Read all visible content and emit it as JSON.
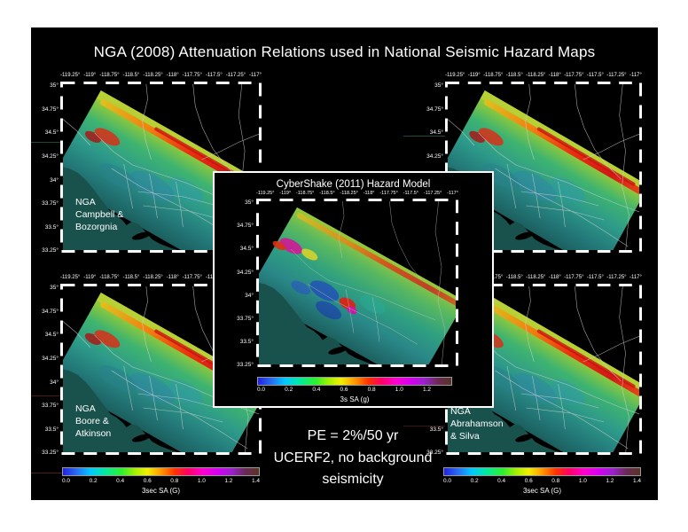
{
  "slide": {
    "title": "NGA (2008) Attenuation Relations used in National Seismic Hazard Maps"
  },
  "axes": {
    "x_labels": [
      "-119.25°",
      "-119°",
      "-118.75°",
      "-118.5°",
      "-118.25°",
      "-118°",
      "-117.75°",
      "-117.5°",
      "-117.25°",
      "-117°"
    ],
    "y_labels": [
      "35°",
      "34.75°",
      "34.5°",
      "34.25°",
      "34°",
      "33.75°",
      "33.5°",
      "33.25°"
    ]
  },
  "maps": {
    "top_left_label": "NGA\nCampbell &\nBozorgnia",
    "bottom_left_label": "NGA\nBoore &\nAtkinson",
    "bottom_right_label": "NGA\nAbrahamson\n&  Silva"
  },
  "inset": {
    "title": "CyberShake (2011) Hazard Model",
    "colorbar_ticks": [
      "0.0",
      "0.2",
      "0.4",
      "0.6",
      "0.8",
      "1.0",
      "1.2"
    ],
    "colorbar_label": "3s SA (g)"
  },
  "colorbars": {
    "ticks": [
      "0.0",
      "0.2",
      "0.4",
      "0.6",
      "0.8",
      "1.0",
      "1.2",
      "1.4"
    ],
    "label": "3sec SA (G)"
  },
  "annotations": {
    "pe": "PE = 2%/50 yr",
    "ucerf": "UCERF2, no background\nseismicity"
  },
  "colors": {
    "page_background": "#ffffff",
    "slide_background": "#000000",
    "ocean": "#19514d",
    "hazard_high": "#d01818",
    "rainbow": [
      "#2222e0",
      "#00c8ff",
      "#2ef02e",
      "#f0f000",
      "#ff9900",
      "#ff2200",
      "#ff00cc",
      "#9922cc",
      "#5a3424"
    ]
  }
}
